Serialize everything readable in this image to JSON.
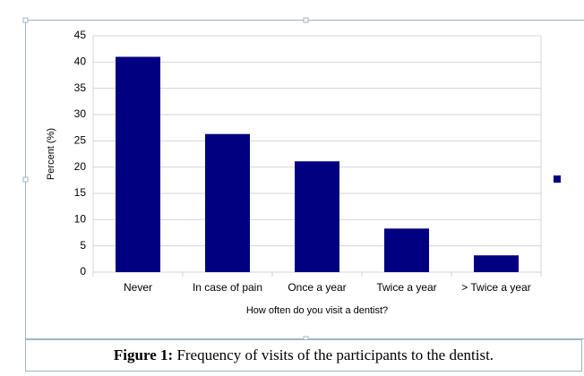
{
  "chart_data": {
    "type": "bar",
    "x_label": "How often do you visit a dentist?",
    "y_label": "Percent (%)",
    "categories": [
      "Never",
      "In case of pain",
      "Once a year",
      "Twice a year",
      "> Twice a year"
    ],
    "values": [
      41,
      26.3,
      21.1,
      8.3,
      3.2
    ],
    "color": "#000080",
    "ylim": [
      0,
      45
    ],
    "yticks": [
      0,
      5,
      10,
      15,
      20,
      25,
      30,
      35,
      40,
      45
    ],
    "grid": true
  },
  "caption": {
    "label": "Figure 1:",
    "text": "Frequency of visits of the participants to the dentist."
  }
}
